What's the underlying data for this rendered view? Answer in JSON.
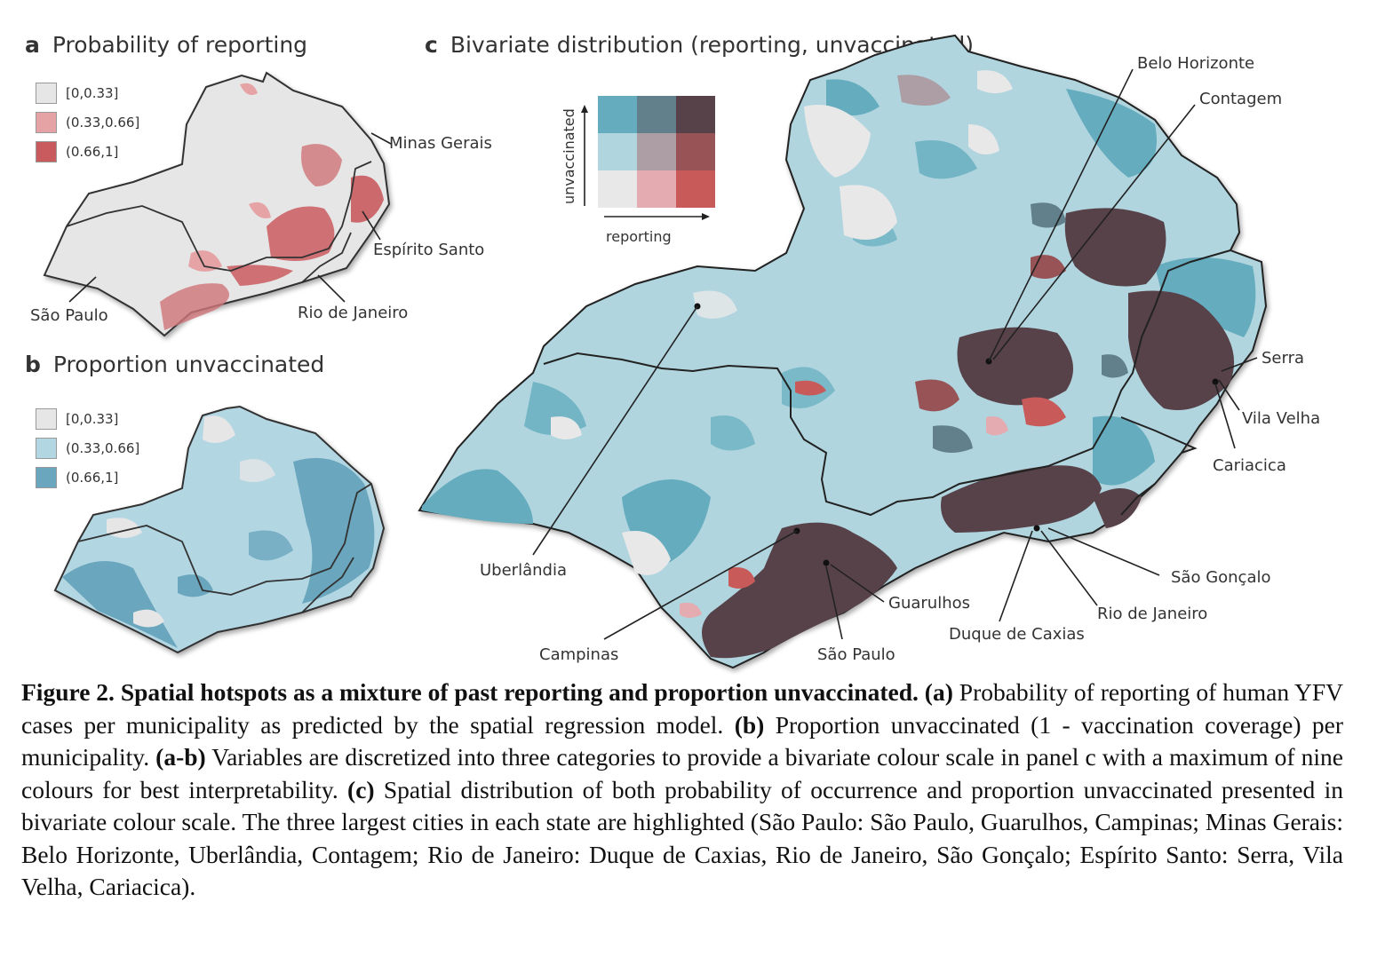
{
  "panel_a": {
    "letter": "a",
    "title": "Probability of reporting",
    "legend": [
      {
        "label": "[0,0.33]",
        "color": "#e6e6e6"
      },
      {
        "label": "(0.33,0.66]",
        "color": "#e5a3a6"
      },
      {
        "label": "(0.66,1]",
        "color": "#c95b5f"
      }
    ],
    "labels": {
      "mg": "Minas Gerais",
      "es": "Espírito Santo",
      "sp": "São Paulo",
      "rj": "Rio de Janeiro"
    }
  },
  "panel_b": {
    "letter": "b",
    "title": "Proportion unvaccinated",
    "legend": [
      {
        "label": "[0,0.33]",
        "color": "#e6e6e6"
      },
      {
        "label": "(0.33,0.66]",
        "color": "#b3d6e3"
      },
      {
        "label": "(0.66,1]",
        "color": "#6aa6bd"
      }
    ]
  },
  "panel_c": {
    "letter": "c",
    "title": "Bivariate distribution (reporting, unvaccinated)",
    "bivariate_key": {
      "x_axis": "reporting",
      "y_axis": "unvaccinated",
      "colors": [
        [
          "#e8e8e8",
          "#e4acb0",
          "#c85a5a"
        ],
        [
          "#b0d5df",
          "#ad9ea5",
          "#985356"
        ],
        [
          "#64acbe",
          "#627f8c",
          "#574249"
        ]
      ]
    },
    "cities": {
      "belo_horizonte": "Belo Horizonte",
      "contagem": "Contagem",
      "serra": "Serra",
      "vila_velha": "Vila Velha",
      "cariacica": "Cariacica",
      "uberlandia": "Uberlândia",
      "sao_goncalo": "São Gonçalo",
      "rio_de_janeiro": "Rio de Janeiro",
      "duque_de_caxias": "Duque de Caxias",
      "guarulhos": "Guarulhos",
      "campinas": "Campinas",
      "sao_paulo": "São Paulo"
    }
  },
  "caption": {
    "fig_label": "Figure 2. Spatial hotspots as a mixture of past reporting and proportion unvaccinated.",
    "a_tag": "(a)",
    "a_text": " Probability of reporting of human YFV cases per municipality as predicted by the spatial regression model. ",
    "b_tag": "(b)",
    "b_text": " Proportion unvaccinated (1 - vaccination coverage) per municipality. ",
    "ab_tag": "(a-b)",
    "ab_text": " Variables are discretized into three categories to provide a bivariate colour scale in panel c with a maximum of nine colours for best interpretability. ",
    "c_tag": "(c)",
    "c_text": " Spatial distribution of both probability of occurrence and proportion unvaccinated presented in bivariate colour scale. The three largest cities in each state are highlighted (São Paulo: São Paulo, Guarulhos, Campinas; Minas Gerais: Belo Horizonte, Uberlândia, Contagem; Rio de Janeiro: Duque de Caxias, Rio de Janeiro, São Gonçalo; Espírito Santo: Serra, Vila Velha, Cariacica)."
  }
}
